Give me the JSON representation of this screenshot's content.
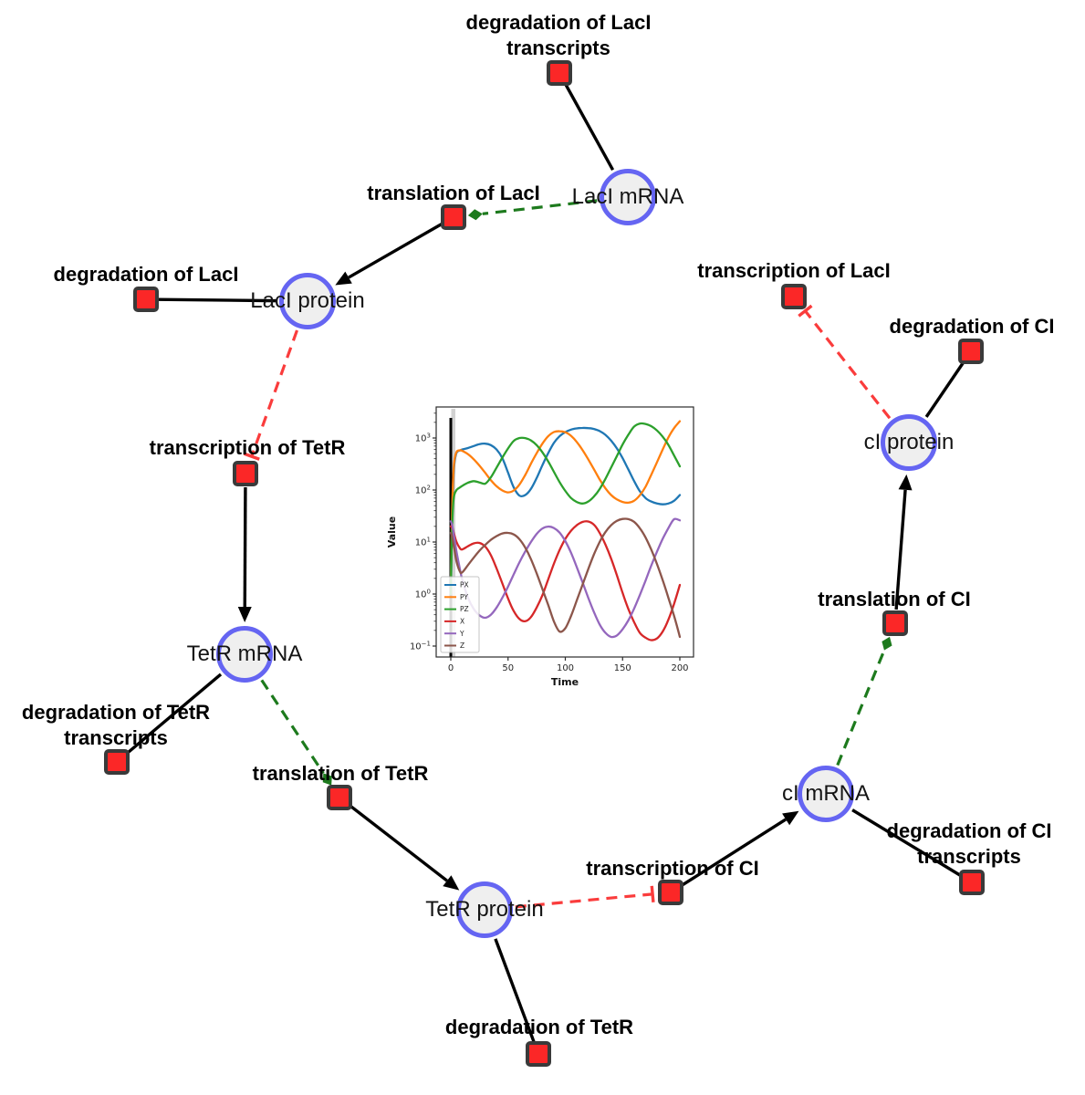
{
  "diagram": {
    "species": [
      {
        "id": "laci_mrna",
        "label": "LacI mRNA"
      },
      {
        "id": "laci_protein",
        "label": "LacI protein"
      },
      {
        "id": "tetr_mrna",
        "label": "TetR mRNA"
      },
      {
        "id": "tetr_protein",
        "label": "TetR protein"
      },
      {
        "id": "ci_mrna",
        "label": "cI mRNA"
      },
      {
        "id": "ci_protein",
        "label": "cI protein"
      }
    ],
    "reactions": [
      {
        "id": "deg_laci_tx",
        "lines": [
          "degradation of LacI",
          "transcripts"
        ]
      },
      {
        "id": "transl_laci",
        "lines": [
          "translation of LacI"
        ]
      },
      {
        "id": "tx_laci",
        "lines": [
          "transcription of LacI"
        ]
      },
      {
        "id": "deg_laci",
        "lines": [
          "degradation of LacI"
        ]
      },
      {
        "id": "tx_tetr",
        "lines": [
          "transcription of TetR"
        ]
      },
      {
        "id": "deg_tetr_tx",
        "lines": [
          "degradation of TetR",
          "transcripts"
        ]
      },
      {
        "id": "transl_tetr",
        "lines": [
          "translation of TetR"
        ]
      },
      {
        "id": "deg_tetr",
        "lines": [
          "degradation of TetR"
        ]
      },
      {
        "id": "tx_ci",
        "lines": [
          "transcription of CI"
        ]
      },
      {
        "id": "deg_ci_tx",
        "lines": [
          "degradation of CI",
          "transcripts"
        ]
      },
      {
        "id": "transl_ci",
        "lines": [
          "translation of CI"
        ]
      },
      {
        "id": "deg_ci",
        "lines": [
          "degradation of CI"
        ]
      }
    ],
    "edges": [
      {
        "from": "laci_mrna",
        "to": "deg_laci_tx",
        "type": "consumption"
      },
      {
        "from": "laci_mrna",
        "to": "transl_laci",
        "type": "modifier"
      },
      {
        "from": "transl_laci",
        "to": "laci_protein",
        "type": "production"
      },
      {
        "from": "laci_protein",
        "to": "deg_laci",
        "type": "consumption"
      },
      {
        "from": "laci_protein",
        "to": "tx_tetr",
        "type": "inhibition"
      },
      {
        "from": "tx_tetr",
        "to": "tetr_mrna",
        "type": "production"
      },
      {
        "from": "tetr_mrna",
        "to": "deg_tetr_tx",
        "type": "consumption"
      },
      {
        "from": "tetr_mrna",
        "to": "transl_tetr",
        "type": "modifier"
      },
      {
        "from": "transl_tetr",
        "to": "tetr_protein",
        "type": "production"
      },
      {
        "from": "tetr_protein",
        "to": "deg_tetr",
        "type": "consumption"
      },
      {
        "from": "tetr_protein",
        "to": "tx_ci",
        "type": "inhibition"
      },
      {
        "from": "tx_ci",
        "to": "ci_mrna",
        "type": "production"
      },
      {
        "from": "ci_mrna",
        "to": "deg_ci_tx",
        "type": "consumption"
      },
      {
        "from": "ci_mrna",
        "to": "transl_ci",
        "type": "modifier"
      },
      {
        "from": "transl_ci",
        "to": "ci_protein",
        "type": "production"
      },
      {
        "from": "ci_protein",
        "to": "deg_ci",
        "type": "consumption"
      },
      {
        "from": "ci_protein",
        "to": "tx_laci",
        "type": "inhibition"
      }
    ],
    "colors": {
      "species_fill": "#efefef",
      "species_border": "#6565f2",
      "reaction_fill": "#fb2727",
      "reaction_border": "#3a3a3a",
      "production_edge": "#000000",
      "modifier_edge": "#1d7a1d",
      "inhibition_edge": "#fa3c3c"
    }
  },
  "chart_data": {
    "type": "line",
    "title": "",
    "xlabel": "Time",
    "ylabel": "Value",
    "x_ticks": [
      0,
      50,
      100,
      150,
      200
    ],
    "y_tick_exponents": [
      -1,
      0,
      1,
      2,
      3
    ],
    "y_scale": "log",
    "xlim": [
      -12,
      210
    ],
    "ylim_log10": [
      -1.21,
      3.6
    ],
    "grid": false,
    "legend_position": "lower left",
    "vline_x": 0,
    "vspan": [
      0.4,
      4
    ],
    "x": [
      0,
      1,
      2,
      3,
      5,
      8,
      10,
      15,
      20,
      25,
      30,
      35,
      40,
      45,
      50,
      55,
      60,
      65,
      70,
      75,
      80,
      85,
      90,
      95,
      100,
      105,
      110,
      115,
      120,
      125,
      130,
      135,
      140,
      145,
      150,
      155,
      160,
      165,
      170,
      175,
      180,
      185,
      190,
      195,
      200
    ],
    "series": [
      {
        "name": "PX",
        "color": "#1f77b4",
        "y": [
          1,
          20,
          120,
          300,
          520,
          575,
          600,
          640,
          700,
          760,
          780,
          730,
          600,
          410,
          215,
          112,
          78,
          80,
          105,
          170,
          300,
          510,
          800,
          1080,
          1300,
          1450,
          1530,
          1560,
          1550,
          1490,
          1360,
          1150,
          890,
          630,
          410,
          250,
          150,
          95,
          70,
          60,
          55,
          53,
          55,
          62,
          80
        ]
      },
      {
        "name": "PY",
        "color": "#ff7f0e",
        "y": [
          1,
          30,
          150,
          350,
          540,
          580,
          565,
          490,
          390,
          295,
          215,
          155,
          118,
          98,
          90,
          98,
          128,
          195,
          320,
          510,
          780,
          1080,
          1300,
          1350,
          1290,
          1100,
          840,
          590,
          390,
          250,
          160,
          108,
          80,
          66,
          59,
          57,
          62,
          79,
          115,
          195,
          340,
          600,
          1020,
          1550,
          2100
        ]
      },
      {
        "name": "PZ",
        "color": "#2ca02c",
        "y": [
          1,
          15,
          50,
          80,
          100,
          112,
          120,
          138,
          148,
          140,
          132,
          175,
          270,
          420,
          630,
          880,
          1000,
          995,
          900,
          730,
          530,
          355,
          225,
          142,
          96,
          70,
          59,
          55,
          60,
          75,
          104,
          163,
          270,
          450,
          750,
          1150,
          1650,
          1890,
          1860,
          1690,
          1400,
          1060,
          740,
          460,
          285
        ]
      },
      {
        "name": "X",
        "color": "#d62728",
        "y": [
          20,
          19,
          17,
          14,
          10,
          7.6,
          7.2,
          8.3,
          9.4,
          9.6,
          8.2,
          5.6,
          3.1,
          1.6,
          0.82,
          0.47,
          0.33,
          0.3,
          0.36,
          0.55,
          0.95,
          1.9,
          3.8,
          7,
          11.5,
          16.5,
          21,
          24.3,
          24.8,
          21.5,
          15,
          9,
          4.8,
          2.3,
          1.05,
          0.52,
          0.29,
          0.18,
          0.145,
          0.13,
          0.14,
          0.19,
          0.32,
          0.65,
          1.5
        ]
      },
      {
        "name": "Y",
        "color": "#9467bd",
        "y": [
          25,
          22,
          17,
          12,
          6.5,
          3,
          1.9,
          0.85,
          0.52,
          0.39,
          0.35,
          0.4,
          0.55,
          0.85,
          1.4,
          2.4,
          4.1,
          6.6,
          10,
          14.3,
          18.2,
          19.8,
          18.6,
          15.2,
          10.4,
          6.2,
          3.3,
          1.7,
          0.85,
          0.45,
          0.26,
          0.18,
          0.15,
          0.16,
          0.21,
          0.31,
          0.52,
          0.95,
          1.8,
          3.5,
          6.5,
          11.5,
          18.5,
          27.5,
          26
        ]
      },
      {
        "name": "Z",
        "color": "#8c564b",
        "y": [
          15,
          13,
          10,
          7.5,
          4.2,
          2.7,
          2.6,
          3.6,
          5,
          6.8,
          8.8,
          11,
          13,
          14.6,
          15,
          14,
          11.3,
          7.8,
          4.7,
          2.5,
          1.25,
          0.62,
          0.3,
          0.19,
          0.22,
          0.38,
          0.75,
          1.5,
          3,
          5.8,
          10,
          15.5,
          21,
          25.5,
          27.8,
          27.6,
          24.5,
          18.5,
          12.3,
          7.2,
          3.8,
          1.85,
          0.85,
          0.38,
          0.15
        ]
      }
    ]
  }
}
